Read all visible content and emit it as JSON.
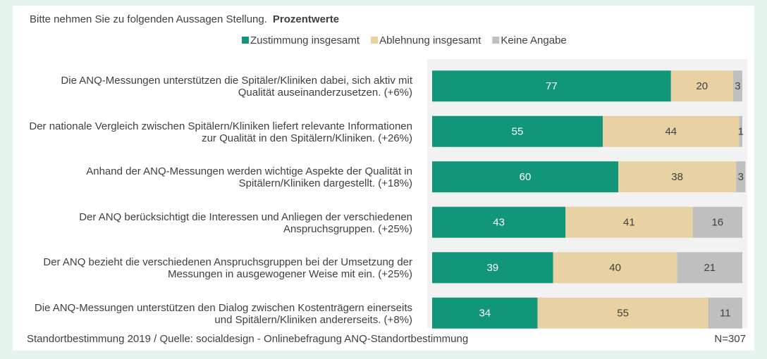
{
  "chart_data": {
    "type": "stacked-barh",
    "title": "Bitte nehmen Sie zu folgenden Aussagen Stellung.",
    "subtitle": "Prozentwerte",
    "categories": [
      "Die ANQ-Messungen unterstützen die Spitäler/Kliniken dabei, sich aktiv mit Qualität auseinanderzusetzen. (+6%)",
      "Der nationale Vergleich zwischen Spitälern/Kliniken liefert relevante Informationen zur Qualität in den Spitälern/Kliniken. (+26%)",
      "Anhand der ANQ-Messungen werden wichtige Aspekte der Qualität in Spitälern/Kliniken dargestellt. (+18%)",
      "Der ANQ berücksichtigt die Interessen und Anliegen der verschiedenen Anspruchsgruppen. (+25%)",
      "Der ANQ bezieht die verschiedenen Anspruchsgruppen bei der Umsetzung der Messungen in ausgewogener Weise mit ein. (+25%)",
      "Die ANQ-Messungen unterstützen den Dialog zwischen Kostenträgern einerseits und Spitälern/Kliniken andererseits. (+8%)"
    ],
    "series": [
      {
        "name": "Zustimmung insgesamt",
        "color": "#12967a",
        "values": [
          77,
          55,
          60,
          43,
          39,
          34
        ]
      },
      {
        "name": "Ablehnung insgesamt",
        "color": "#e8d1a2",
        "values": [
          20,
          44,
          38,
          41,
          40,
          55
        ]
      },
      {
        "name": "Keine Angabe",
        "color": "#bfbfbf",
        "values": [
          3,
          1,
          3,
          16,
          21,
          11
        ]
      }
    ],
    "xlim": [
      0,
      100
    ],
    "source": "Standortbestimmung 2019 / Quelle: socialdesign - Onlinebefragung ANQ-Standortbestimmung",
    "note": "N=307"
  }
}
